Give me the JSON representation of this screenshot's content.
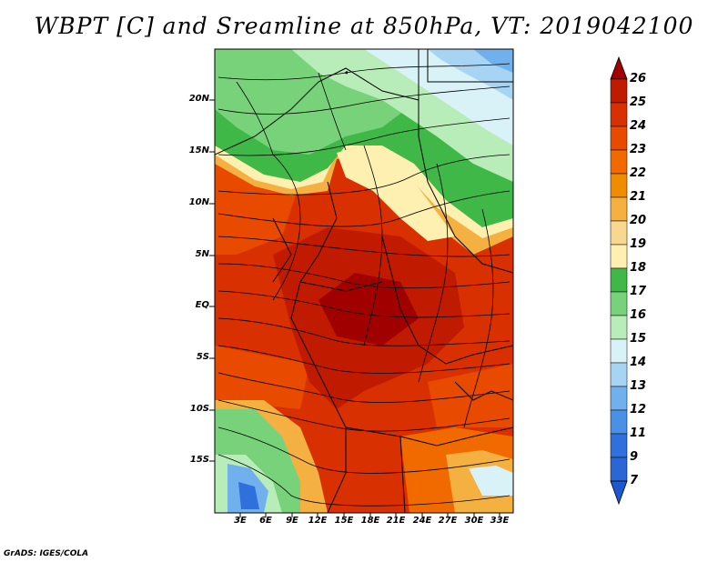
{
  "title": "WBPT [C] and Sreamline at 850hPa, VT: 2019042100",
  "map": {
    "variable": "Wet-bulb potential temperature",
    "units": "C",
    "level": "850hPa",
    "valid_time": "2019042100",
    "overlay": "Streamline",
    "lat_labels": [
      "20N",
      "15N",
      "10N",
      "5N",
      "EQ",
      "5S",
      "10S",
      "15S"
    ],
    "lat_values": [
      20,
      15,
      10,
      5,
      0,
      -5,
      -10,
      -15
    ],
    "lon_labels": [
      "3E",
      "6E",
      "9E",
      "12E",
      "15E",
      "18E",
      "21E",
      "24E",
      "27E",
      "30E",
      "33E"
    ],
    "lon_values": [
      3,
      6,
      9,
      12,
      15,
      18,
      21,
      24,
      27,
      30,
      33
    ],
    "lat_range": [
      -19.5,
      24.5
    ],
    "lon_range": [
      0,
      34.5
    ]
  },
  "colorbar": {
    "labels": [
      "26",
      "25",
      "24",
      "23",
      "22",
      "21",
      "20",
      "19",
      "18",
      "17",
      "16",
      "15",
      "14",
      "13",
      "12",
      "11",
      "9",
      "7"
    ],
    "colors": [
      "#a00000",
      "#c01a00",
      "#d83000",
      "#e84a00",
      "#f06a00",
      "#f08c00",
      "#f4b040",
      "#f8d890",
      "#fef0b0",
      "#3fb848",
      "#78d27a",
      "#b8ecb8",
      "#d8f2f8",
      "#a8d4f4",
      "#70b0ec",
      "#4a90e4",
      "#3070dc",
      "#1c58d0"
    ]
  },
  "credit": "GrADS: IGES/COLA"
}
